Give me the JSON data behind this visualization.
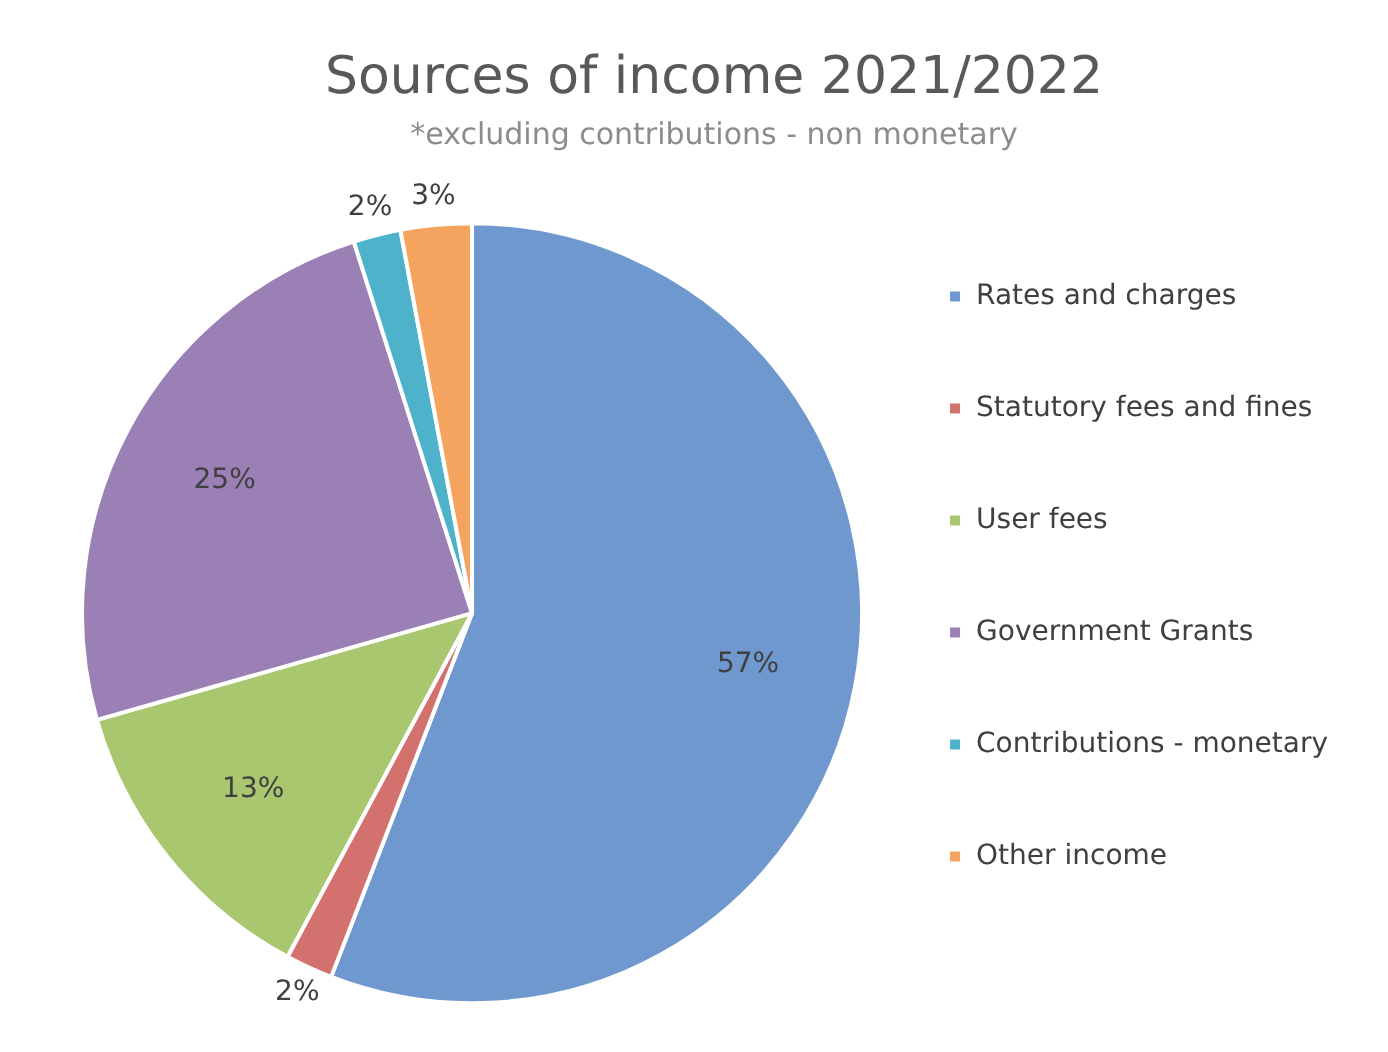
{
  "chart_data": {
    "type": "pie",
    "title": "Sources of income 2021/2022",
    "subtitle": "*excluding contributions - non monetary",
    "categories": [
      "Rates and charges",
      "Statutory fees and fines",
      "User fees",
      "Government Grants",
      "Contributions - monetary",
      "Other income"
    ],
    "values": [
      57,
      2,
      13,
      25,
      2,
      3
    ],
    "colors": [
      "#6f98cf",
      "#d2716e",
      "#a9c76f",
      "#9b80b6",
      "#4fb2cb",
      "#f5a45f"
    ],
    "value_labels": [
      "57%",
      "2%",
      "13%",
      "25%",
      "2%",
      "3%"
    ],
    "legend": "right"
  }
}
